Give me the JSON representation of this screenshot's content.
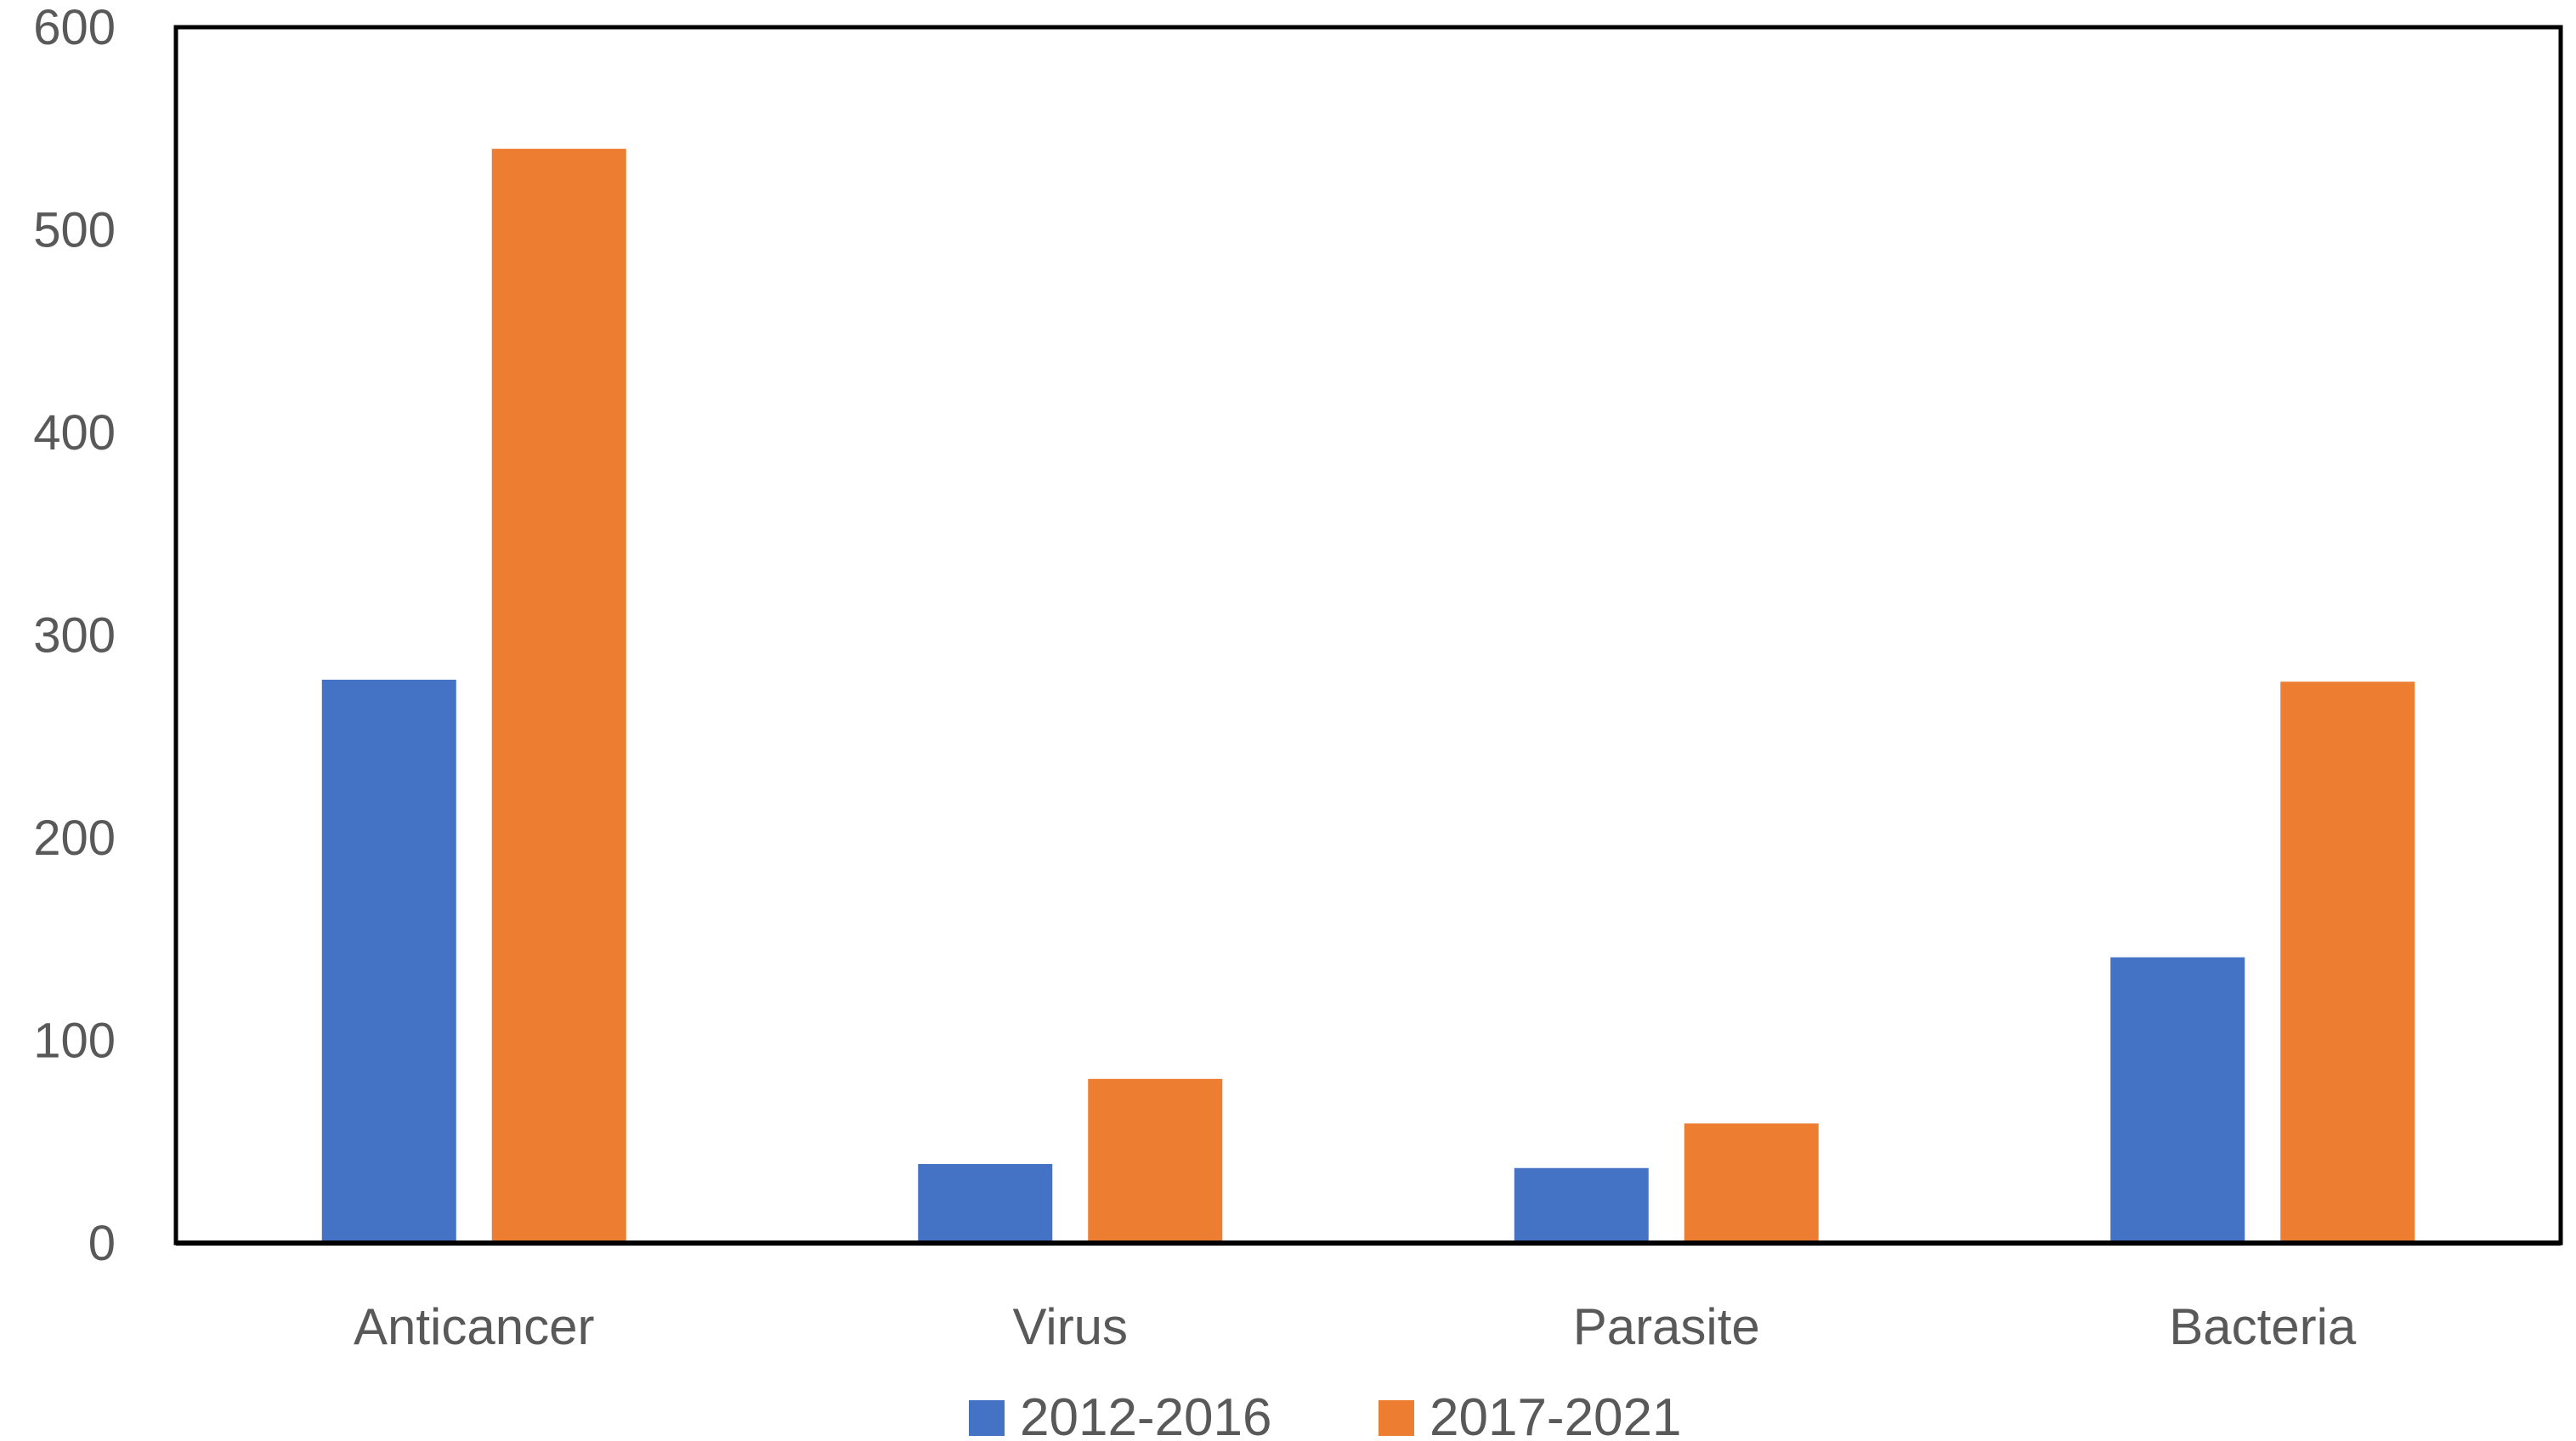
{
  "chart_data": {
    "type": "bar",
    "categories": [
      "Anticancer",
      "Virus",
      "Parasite",
      "Bacteria"
    ],
    "series": [
      {
        "name": "2012-2016",
        "color": "#4472C4",
        "values": [
          278,
          39,
          37,
          141
        ]
      },
      {
        "name": "2017-2021",
        "color": "#ED7D31",
        "values": [
          540,
          81,
          59,
          277
        ]
      }
    ],
    "yticks": [
      "0",
      "100",
      "200",
      "300",
      "400",
      "500",
      "600"
    ],
    "ylim": [
      0,
      600
    ],
    "grid": false,
    "legend": "bottom"
  }
}
